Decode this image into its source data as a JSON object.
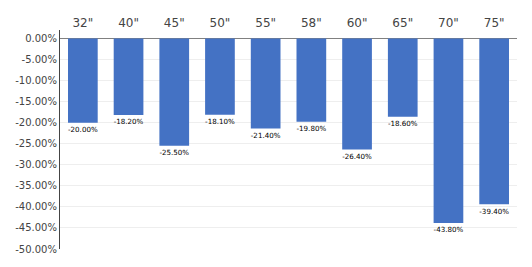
{
  "chart_data": {
    "type": "bar",
    "categories": [
      "32\"",
      "40\"",
      "45\"",
      "50\"",
      "55\"",
      "58\"",
      "60\"",
      "65\"",
      "70\"",
      "75\""
    ],
    "values": [
      -20.0,
      -18.2,
      -25.5,
      -18.1,
      -21.4,
      -19.8,
      -26.4,
      -18.6,
      -43.8,
      -39.4
    ],
    "value_labels": [
      "-20.00%",
      "-18.20%",
      "-25.50%",
      "-18.10%",
      "-21.40%",
      "-19.80%",
      "-26.40%",
      "-18.60%",
      "-43.80%",
      "-39.40%"
    ],
    "data_labels": true,
    "color": "#4472C4",
    "ylim": [
      -50,
      2
    ],
    "yticks": [
      {
        "value": 0,
        "label": "0.00%"
      },
      {
        "value": -5,
        "label": "-5.00%"
      },
      {
        "value": -10,
        "label": "-10.00%"
      },
      {
        "value": -15,
        "label": "-15.00%"
      },
      {
        "value": -20,
        "label": "-20.00%"
      },
      {
        "value": -25,
        "label": "-25.00%"
      },
      {
        "value": -30,
        "label": "-30.00%"
      },
      {
        "value": -35,
        "label": "-35.00%"
      },
      {
        "value": -40,
        "label": "-40.00%"
      },
      {
        "value": -45,
        "label": "-45.00%"
      },
      {
        "value": -50,
        "label": "-50.00%"
      }
    ],
    "grid": true
  }
}
